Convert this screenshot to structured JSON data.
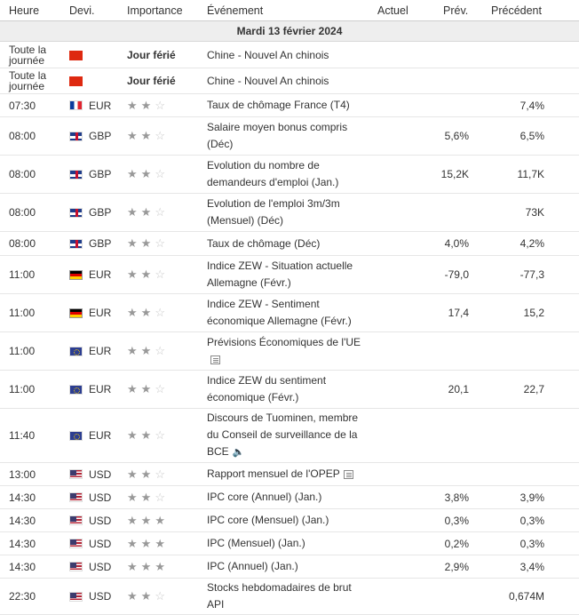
{
  "header": {
    "time": "Heure",
    "currency": "Devi.",
    "importance": "Importance",
    "event": "Événement",
    "actual": "Actuel",
    "forecast": "Prév.",
    "previous": "Précédent"
  },
  "day_label": "Mardi 13 février 2024",
  "importance_scale": "1-3 stars",
  "rows": [
    {
      "time": "Toute la journée",
      "time_line1": "Toute la",
      "time_line2": "journée",
      "flag": "cn",
      "currency": "",
      "importance": "holiday",
      "holiday_label": "Jour férié",
      "event": "Chine - Nouvel An chinois",
      "actual": "",
      "forecast": "",
      "previous": ""
    },
    {
      "time": "Toute la journée",
      "time_line1": "Toute la",
      "time_line2": "journée",
      "flag": "cn",
      "currency": "",
      "importance": "holiday",
      "holiday_label": "Jour férié",
      "event": "Chine - Nouvel An chinois",
      "actual": "",
      "forecast": "",
      "previous": ""
    },
    {
      "time": "07:30",
      "flag": "fr",
      "currency": "EUR",
      "importance": 2,
      "event": "Taux de chômage France (T4)",
      "actual": "",
      "forecast": "",
      "previous": "7,4%"
    },
    {
      "time": "08:00",
      "flag": "gb",
      "currency": "GBP",
      "importance": 2,
      "event_lines": [
        "Salaire moyen bonus compris",
        "(Déc)"
      ],
      "actual": "",
      "forecast": "5,6%",
      "previous": "6,5%"
    },
    {
      "time": "08:00",
      "flag": "gb",
      "currency": "GBP",
      "importance": 2,
      "event_lines": [
        "Evolution du nombre de",
        "demandeurs d'emploi (Jan.)"
      ],
      "actual": "",
      "forecast": "15,2K",
      "previous": "11,7K"
    },
    {
      "time": "08:00",
      "flag": "gb",
      "currency": "GBP",
      "importance": 2,
      "event_lines": [
        "Evolution de l'emploi 3m/3m",
        "(Mensuel) (Déc)"
      ],
      "actual": "",
      "forecast": "",
      "previous": "73K"
    },
    {
      "time": "08:00",
      "flag": "gb",
      "currency": "GBP",
      "importance": 2,
      "event": "Taux de chômage (Déc)",
      "actual": "",
      "forecast": "4,0%",
      "previous": "4,2%"
    },
    {
      "time": "11:00",
      "flag": "de",
      "currency": "EUR",
      "importance": 2,
      "event_lines": [
        "Indice ZEW - Situation actuelle",
        "Allemagne (Févr.)"
      ],
      "actual": "",
      "forecast": "-79,0",
      "previous": "-77,3"
    },
    {
      "time": "11:00",
      "flag": "de",
      "currency": "EUR",
      "importance": 2,
      "event_lines": [
        "Indice ZEW - Sentiment",
        "économique Allemagne (Févr.)"
      ],
      "actual": "",
      "forecast": "17,4",
      "previous": "15,2"
    },
    {
      "time": "11:00",
      "flag": "eu",
      "currency": "EUR",
      "importance": 2,
      "event_lines": [
        "Prévisions Économiques de l'UE",
        ""
      ],
      "icon": "document-icon",
      "actual": "",
      "forecast": "",
      "previous": ""
    },
    {
      "time": "11:00",
      "flag": "eu",
      "currency": "EUR",
      "importance": 2,
      "event_lines": [
        "Indice ZEW du sentiment",
        "économique (Févr.)"
      ],
      "actual": "",
      "forecast": "20,1",
      "previous": "22,7"
    },
    {
      "time": "11:40",
      "flag": "eu",
      "currency": "EUR",
      "importance": 2,
      "event_lines": [
        "Discours de Tuominen, membre",
        "du Conseil de surveillance de la",
        "BCE"
      ],
      "icon": "speaker-icon",
      "actual": "",
      "forecast": "",
      "previous": ""
    },
    {
      "time": "13:00",
      "flag": "us",
      "currency": "USD",
      "importance": 2,
      "event": "Rapport mensuel de l'OPEP",
      "icon": "document-icon",
      "actual": "",
      "forecast": "",
      "previous": ""
    },
    {
      "time": "14:30",
      "flag": "us",
      "currency": "USD",
      "importance": 2,
      "event": "IPC core (Annuel) (Jan.)",
      "actual": "",
      "forecast": "3,8%",
      "previous": "3,9%"
    },
    {
      "time": "14:30",
      "flag": "us",
      "currency": "USD",
      "importance": 3,
      "event": "IPC core (Mensuel) (Jan.)",
      "actual": "",
      "forecast": "0,3%",
      "previous": "0,3%"
    },
    {
      "time": "14:30",
      "flag": "us",
      "currency": "USD",
      "importance": 3,
      "event": "IPC (Mensuel) (Jan.)",
      "actual": "",
      "forecast": "0,2%",
      "previous": "0,3%"
    },
    {
      "time": "14:30",
      "flag": "us",
      "currency": "USD",
      "importance": 3,
      "event": "IPC (Annuel) (Jan.)",
      "actual": "",
      "forecast": "2,9%",
      "previous": "3,4%"
    },
    {
      "time": "22:30",
      "flag": "us",
      "currency": "USD",
      "importance": 2,
      "event_lines": [
        "Stocks hebdomadaires de brut",
        "API"
      ],
      "actual": "",
      "forecast": "",
      "previous": "0,674M"
    }
  ]
}
